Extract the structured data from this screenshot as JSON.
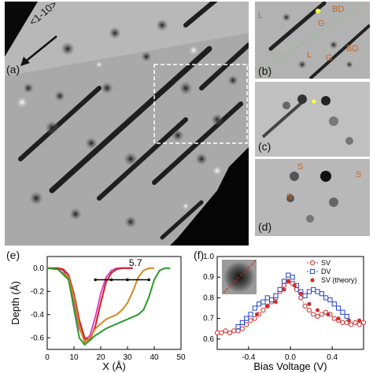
{
  "figure": {
    "panel_a": {
      "label": "(a)",
      "direction": "<1-10>"
    },
    "panel_b": {
      "label": "(b)",
      "annotations": [
        "L",
        "BD",
        "G",
        "L",
        "G",
        "BD"
      ]
    },
    "panel_c": {
      "label": "(c)"
    },
    "panel_d": {
      "label": "(d)",
      "annotations": [
        "S",
        "S",
        "S"
      ]
    },
    "panel_e": {
      "label": "(e)",
      "xlabel": "X (Å)",
      "ylabel": "Depth (Å)",
      "annotation": "5.7"
    },
    "panel_f": {
      "label": "(f)",
      "xlabel": "Bias Voltage (V)"
    }
  },
  "chart_data": [
    {
      "type": "line",
      "panel": "(e)",
      "xlabel": "X (Å)",
      "ylabel": "Depth (Å)",
      "xlim": [
        0,
        50
      ],
      "ylim": [
        -0.7,
        0.1
      ],
      "xticks": [
        "0",
        "10",
        "20",
        "30",
        "40",
        "50"
      ],
      "yticks": [
        "0.0",
        "-0.2",
        "-0.4",
        "-0.6"
      ],
      "annotation": "5.7",
      "series": [
        {
          "color": "#e040c0",
          "x": [
            0,
            4,
            6,
            8,
            10,
            12,
            14,
            16,
            18,
            20,
            22,
            24,
            26,
            28,
            30,
            32
          ],
          "y": [
            0,
            0,
            -0.02,
            -0.1,
            -0.3,
            -0.52,
            -0.62,
            -0.58,
            -0.42,
            -0.22,
            -0.08,
            -0.02,
            0,
            0,
            0,
            0
          ]
        },
        {
          "color": "#cc2020",
          "x": [
            0,
            4,
            6,
            8,
            10,
            12,
            14,
            16,
            18,
            20,
            22,
            24,
            26,
            28,
            30,
            32
          ],
          "y": [
            0,
            0,
            -0.01,
            -0.06,
            -0.22,
            -0.45,
            -0.6,
            -0.62,
            -0.5,
            -0.3,
            -0.12,
            -0.04,
            -0.01,
            0,
            0,
            0
          ]
        },
        {
          "color": "#d08a20",
          "x": [
            0,
            4,
            8,
            10,
            12,
            14,
            16,
            18,
            20,
            22,
            24,
            26,
            28,
            30,
            32,
            34,
            36,
            38,
            40
          ],
          "y": [
            0,
            -0.01,
            -0.08,
            -0.25,
            -0.5,
            -0.64,
            -0.6,
            -0.52,
            -0.48,
            -0.44,
            -0.42,
            -0.4,
            -0.36,
            -0.3,
            -0.2,
            -0.08,
            -0.02,
            0,
            0
          ]
        },
        {
          "color": "#2a9a2a",
          "x": [
            0,
            4,
            8,
            10,
            12,
            14,
            16,
            18,
            20,
            22,
            24,
            26,
            28,
            30,
            32,
            34,
            36,
            38,
            40,
            42,
            44,
            46
          ],
          "y": [
            0,
            -0.01,
            -0.1,
            -0.35,
            -0.6,
            -0.66,
            -0.62,
            -0.58,
            -0.55,
            -0.52,
            -0.5,
            -0.48,
            -0.46,
            -0.44,
            -0.42,
            -0.4,
            -0.36,
            -0.25,
            -0.1,
            -0.02,
            0,
            0
          ]
        }
      ]
    },
    {
      "type": "scatter",
      "panel": "(f)",
      "xlabel": "Bias Voltage (V)",
      "xlim": [
        -0.7,
        0.7
      ],
      "ylim": [
        0.55,
        1.0
      ],
      "xticks": [
        "-0.4",
        "0.0",
        "0.4"
      ],
      "yticks": [
        "0.6",
        "0.7",
        "0.8",
        "0.9",
        "1.0"
      ],
      "series": [
        {
          "name": "SV",
          "color": "#d03030",
          "marker": "open-circle",
          "x": [
            -0.7,
            -0.66,
            -0.62,
            -0.58,
            -0.54,
            -0.5,
            -0.46,
            -0.42,
            -0.38,
            -0.34,
            -0.3,
            -0.26,
            -0.22,
            -0.18,
            -0.14,
            -0.1,
            -0.06,
            -0.02,
            0.02,
            0.06,
            0.1,
            0.14,
            0.18,
            0.22,
            0.26,
            0.3,
            0.34,
            0.38,
            0.42,
            0.46,
            0.5,
            0.54,
            0.58,
            0.62,
            0.66,
            0.7
          ],
          "y": [
            0.63,
            0.63,
            0.64,
            0.63,
            0.64,
            0.64,
            0.65,
            0.67,
            0.69,
            0.7,
            0.72,
            0.74,
            0.76,
            0.78,
            0.8,
            0.83,
            0.86,
            0.88,
            0.87,
            0.84,
            0.8,
            0.76,
            0.74,
            0.72,
            0.71,
            0.72,
            0.73,
            0.72,
            0.7,
            0.69,
            0.68,
            0.68,
            0.67,
            0.68,
            0.67,
            0.68
          ]
        },
        {
          "name": "DV",
          "color": "#2244cc",
          "marker": "open-square",
          "x": [
            -0.5,
            -0.46,
            -0.42,
            -0.38,
            -0.34,
            -0.3,
            -0.26,
            -0.22,
            -0.18,
            -0.14,
            -0.1,
            -0.06,
            -0.02,
            0.02,
            0.06,
            0.1,
            0.14,
            0.18,
            0.22,
            0.26,
            0.3,
            0.34,
            0.38,
            0.42,
            0.46,
            0.5,
            0.54
          ],
          "y": [
            0.66,
            0.68,
            0.7,
            0.72,
            0.75,
            0.77,
            0.78,
            0.8,
            0.79,
            0.81,
            0.84,
            0.88,
            0.91,
            0.9,
            0.86,
            0.83,
            0.81,
            0.83,
            0.84,
            0.83,
            0.82,
            0.8,
            0.79,
            0.77,
            0.75,
            0.73,
            0.71
          ]
        },
        {
          "name": "SV (theory)",
          "color": "#d03030",
          "marker": "filled-circle",
          "x": [
            -0.32,
            -0.22,
            -0.14,
            -0.06,
            -0.02,
            0.04,
            0.1,
            0.18,
            0.26,
            0.36,
            0.46,
            0.56,
            0.66
          ],
          "y": [
            0.72,
            0.76,
            0.78,
            0.84,
            0.88,
            0.86,
            0.82,
            0.77,
            0.74,
            0.72,
            0.7,
            0.69,
            0.69
          ]
        }
      ]
    }
  ]
}
